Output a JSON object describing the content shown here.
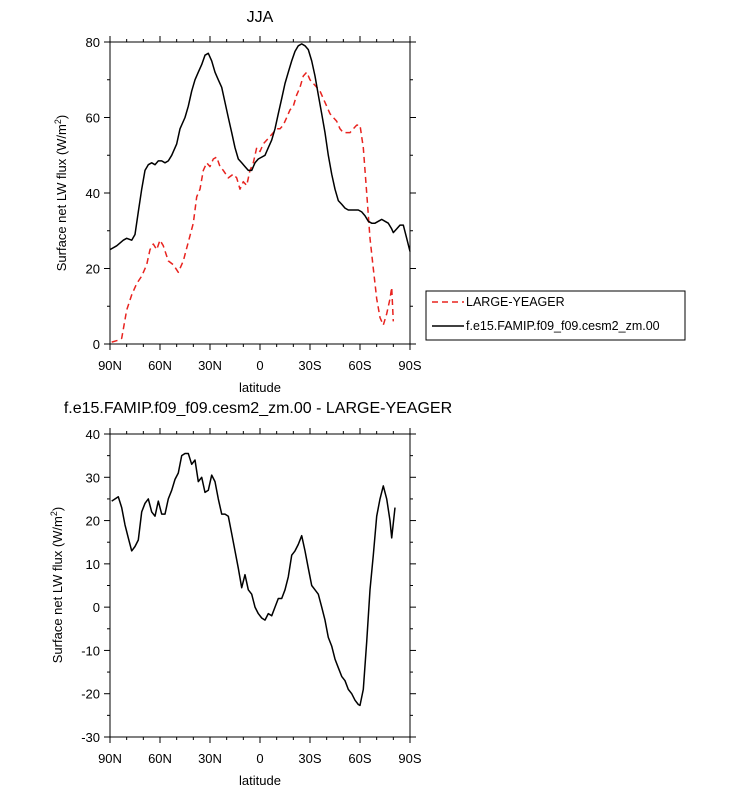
{
  "chart_data": [
    {
      "type": "line",
      "title": "JJA",
      "xlabel": "latitude",
      "ylabel": "Surface net LW flux (W/m",
      "ylabel_sup": "2",
      "ylabel_end": ")",
      "xlim": [
        90,
        -90
      ],
      "ylim": [
        0,
        80
      ],
      "xticks": [
        90,
        60,
        30,
        0,
        -30,
        -60,
        -90
      ],
      "xtick_labels": [
        "90N",
        "60N",
        "30N",
        "0",
        "30S",
        "60S",
        "90S"
      ],
      "yticks": [
        0,
        20,
        40,
        60,
        80
      ],
      "ytick_labels": [
        "0",
        "20",
        "40",
        "60",
        "80"
      ],
      "legend": [
        "LARGE-YEAGER",
        "f.e15.FAMIP.f09_f09.cesm2_zm.00"
      ],
      "series": [
        {
          "name": "LARGE-YEAGER",
          "color": "#e8231f",
          "dash": "6,4",
          "points": [
            [
              89,
              0.5
            ],
            [
              85,
              1
            ],
            [
              83,
              1.5
            ],
            [
              80,
              9
            ],
            [
              77,
              13
            ],
            [
              74,
              16
            ],
            [
              71,
              18
            ],
            [
              68,
              21
            ],
            [
              66,
              25
            ],
            [
              64,
              26.5
            ],
            [
              62,
              25
            ],
            [
              60,
              27.5
            ],
            [
              58,
              26
            ],
            [
              55,
              22
            ],
            [
              52,
              21
            ],
            [
              49,
              19
            ],
            [
              46,
              22
            ],
            [
              43,
              27
            ],
            [
              40,
              32
            ],
            [
              38,
              39
            ],
            [
              36,
              41
            ],
            [
              34,
              46
            ],
            [
              32,
              48
            ],
            [
              30,
              47
            ],
            [
              28,
              49
            ],
            [
              26,
              49.5
            ],
            [
              24,
              47
            ],
            [
              22,
              46
            ],
            [
              19,
              44
            ],
            [
              16,
              45
            ],
            [
              14,
              44
            ],
            [
              12,
              41
            ],
            [
              10,
              43
            ],
            [
              8,
              42
            ],
            [
              6,
              46
            ],
            [
              4,
              48
            ],
            [
              2,
              52
            ],
            [
              0,
              51
            ],
            [
              -2,
              53
            ],
            [
              -4,
              54
            ],
            [
              -6,
              55
            ],
            [
              -8,
              56
            ],
            [
              -10,
              57
            ],
            [
              -12,
              57
            ],
            [
              -14,
              58
            ],
            [
              -16,
              60
            ],
            [
              -18,
              62
            ],
            [
              -20,
              63
            ],
            [
              -22,
              66
            ],
            [
              -24,
              68
            ],
            [
              -26,
              71
            ],
            [
              -28,
              72
            ],
            [
              -30,
              70
            ],
            [
              -32,
              69
            ],
            [
              -34,
              68
            ],
            [
              -36,
              67
            ],
            [
              -38,
              65
            ],
            [
              -40,
              63
            ],
            [
              -42,
              61
            ],
            [
              -44,
              60
            ],
            [
              -46,
              59
            ],
            [
              -48,
              57
            ],
            [
              -50,
              56
            ],
            [
              -52,
              56
            ],
            [
              -54,
              56
            ],
            [
              -56,
              57
            ],
            [
              -58,
              58
            ],
            [
              -60,
              58
            ],
            [
              -62,
              52
            ],
            [
              -64,
              40
            ],
            [
              -66,
              28
            ],
            [
              -68,
              20
            ],
            [
              -70,
              12
            ],
            [
              -72,
              7
            ],
            [
              -74,
              5
            ],
            [
              -76,
              8
            ],
            [
              -78,
              12
            ],
            [
              -79,
              15
            ],
            [
              -80,
              6
            ]
          ]
        },
        {
          "name": "f.e15.FAMIP.f09_f09.cesm2_zm.00",
          "color": "#000000",
          "dash": "",
          "points": [
            [
              90,
              25
            ],
            [
              86,
              26
            ],
            [
              82,
              27.5
            ],
            [
              80,
              28
            ],
            [
              77,
              27.5
            ],
            [
              75,
              29
            ],
            [
              73,
              35
            ],
            [
              71,
              41
            ],
            [
              69,
              46
            ],
            [
              67,
              47.5
            ],
            [
              65,
              48
            ],
            [
              63,
              47.5
            ],
            [
              61,
              48.5
            ],
            [
              59,
              48.5
            ],
            [
              57,
              48
            ],
            [
              55,
              48.5
            ],
            [
              53,
              50
            ],
            [
              50,
              53
            ],
            [
              48,
              57
            ],
            [
              45,
              60
            ],
            [
              43,
              63
            ],
            [
              41,
              67
            ],
            [
              39,
              70
            ],
            [
              37,
              72
            ],
            [
              35,
              74
            ],
            [
              33,
              76.5
            ],
            [
              31,
              77
            ],
            [
              29,
              75
            ],
            [
              27,
              72
            ],
            [
              25,
              70
            ],
            [
              23,
              68
            ],
            [
              21,
              64
            ],
            [
              19,
              60
            ],
            [
              17,
              56
            ],
            [
              15,
              52
            ],
            [
              13,
              49
            ],
            [
              11,
              48
            ],
            [
              9,
              47
            ],
            [
              7,
              46
            ],
            [
              5,
              46
            ],
            [
              3,
              48
            ],
            [
              1,
              49
            ],
            [
              -1,
              49.5
            ],
            [
              -3,
              50
            ],
            [
              -5,
              52
            ],
            [
              -7,
              54
            ],
            [
              -9,
              57
            ],
            [
              -11,
              61
            ],
            [
              -13,
              65
            ],
            [
              -15,
              69
            ],
            [
              -17,
              72
            ],
            [
              -19,
              75
            ],
            [
              -21,
              77.5
            ],
            [
              -23,
              79
            ],
            [
              -25,
              79.5
            ],
            [
              -27,
              79
            ],
            [
              -29,
              78
            ],
            [
              -31,
              75
            ],
            [
              -33,
              71
            ],
            [
              -35,
              66
            ],
            [
              -37,
              61
            ],
            [
              -39,
              56
            ],
            [
              -41,
              50
            ],
            [
              -43,
              45
            ],
            [
              -45,
              41
            ],
            [
              -47,
              38
            ],
            [
              -49,
              37
            ],
            [
              -51,
              36
            ],
            [
              -53,
              35.5
            ],
            [
              -55,
              35.5
            ],
            [
              -57,
              35.5
            ],
            [
              -59,
              35.5
            ],
            [
              -61,
              35
            ],
            [
              -63,
              34
            ],
            [
              -65,
              32.5
            ],
            [
              -67,
              32
            ],
            [
              -69,
              32
            ],
            [
              -71,
              32.5
            ],
            [
              -73,
              33
            ],
            [
              -75,
              32.5
            ],
            [
              -77,
              32
            ],
            [
              -79,
              30.5
            ],
            [
              -80,
              29.5
            ],
            [
              -82,
              30.5
            ],
            [
              -84,
              31.5
            ],
            [
              -86,
              31.5
            ],
            [
              -88,
              28
            ],
            [
              -90,
              24.5
            ]
          ]
        }
      ]
    },
    {
      "type": "line",
      "title": "f.e15.FAMIP.f09_f09.cesm2_zm.00 - LARGE-YEAGER",
      "xlabel": "latitude",
      "ylabel": "Surface net LW flux (W/m",
      "ylabel_sup": "2",
      "ylabel_end": ")",
      "xlim": [
        90,
        -90
      ],
      "ylim": [
        -30,
        40
      ],
      "xticks": [
        90,
        60,
        30,
        0,
        -30,
        -60,
        -90
      ],
      "xtick_labels": [
        "90N",
        "60N",
        "30N",
        "0",
        "30S",
        "60S",
        "90S"
      ],
      "yticks": [
        -30,
        -20,
        -10,
        0,
        10,
        20,
        30,
        40
      ],
      "ytick_labels": [
        "-30",
        "-20",
        "-10",
        "0",
        "10",
        "20",
        "30",
        "40"
      ],
      "series": [
        {
          "name": "f.e15.FAMIP.f09_f09.cesm2_zm.00 - LARGE-YEAGER",
          "color": "#000000",
          "dash": "",
          "points": [
            [
              89,
              24.5
            ],
            [
              85,
              25.5
            ],
            [
              83,
              23
            ],
            [
              81,
              19
            ],
            [
              79,
              16
            ],
            [
              77,
              13
            ],
            [
              75,
              14
            ],
            [
              73,
              15.5
            ],
            [
              71,
              22
            ],
            [
              69,
              24
            ],
            [
              67,
              25
            ],
            [
              65,
              22
            ],
            [
              63,
              21
            ],
            [
              61,
              24.5
            ],
            [
              59,
              21.5
            ],
            [
              57,
              21.5
            ],
            [
              55,
              25
            ],
            [
              53,
              27
            ],
            [
              51,
              29.5
            ],
            [
              49,
              31
            ],
            [
              47,
              35
            ],
            [
              45,
              35.5
            ],
            [
              43,
              35.5
            ],
            [
              41,
              33
            ],
            [
              39,
              34
            ],
            [
              37,
              29
            ],
            [
              35,
              30
            ],
            [
              33,
              26.5
            ],
            [
              31,
              27
            ],
            [
              29,
              30.5
            ],
            [
              27,
              29
            ],
            [
              25,
              25
            ],
            [
              23,
              21.5
            ],
            [
              21,
              21.5
            ],
            [
              19,
              21
            ],
            [
              17,
              17
            ],
            [
              15,
              13
            ],
            [
              13,
              9
            ],
            [
              11,
              4.5
            ],
            [
              9,
              7.5
            ],
            [
              7,
              4
            ],
            [
              5,
              3
            ],
            [
              3,
              0
            ],
            [
              1,
              -1.5
            ],
            [
              -1,
              -2.5
            ],
            [
              -3,
              -3
            ],
            [
              -5,
              -1.5
            ],
            [
              -7,
              -2
            ],
            [
              -9,
              0
            ],
            [
              -11,
              2
            ],
            [
              -13,
              2
            ],
            [
              -15,
              4
            ],
            [
              -17,
              7
            ],
            [
              -19,
              12
            ],
            [
              -21,
              13
            ],
            [
              -23,
              14.5
            ],
            [
              -25,
              16.5
            ],
            [
              -27,
              13
            ],
            [
              -29,
              9
            ],
            [
              -31,
              5
            ],
            [
              -33,
              4
            ],
            [
              -35,
              3
            ],
            [
              -37,
              0
            ],
            [
              -39,
              -3
            ],
            [
              -41,
              -7
            ],
            [
              -43,
              -9
            ],
            [
              -45,
              -12
            ],
            [
              -47,
              -14
            ],
            [
              -49,
              -16
            ],
            [
              -51,
              -17
            ],
            [
              -53,
              -19
            ],
            [
              -55,
              -20
            ],
            [
              -57,
              -21.5
            ],
            [
              -59,
              -22.5
            ],
            [
              -60,
              -22.7
            ],
            [
              -62,
              -19
            ],
            [
              -64,
              -8
            ],
            [
              -66,
              4
            ],
            [
              -68,
              12
            ],
            [
              -70,
              21
            ],
            [
              -72,
              25
            ],
            [
              -74,
              28
            ],
            [
              -76,
              25
            ],
            [
              -78,
              20
            ],
            [
              -79,
              16
            ],
            [
              -81,
              23
            ]
          ]
        }
      ]
    }
  ]
}
